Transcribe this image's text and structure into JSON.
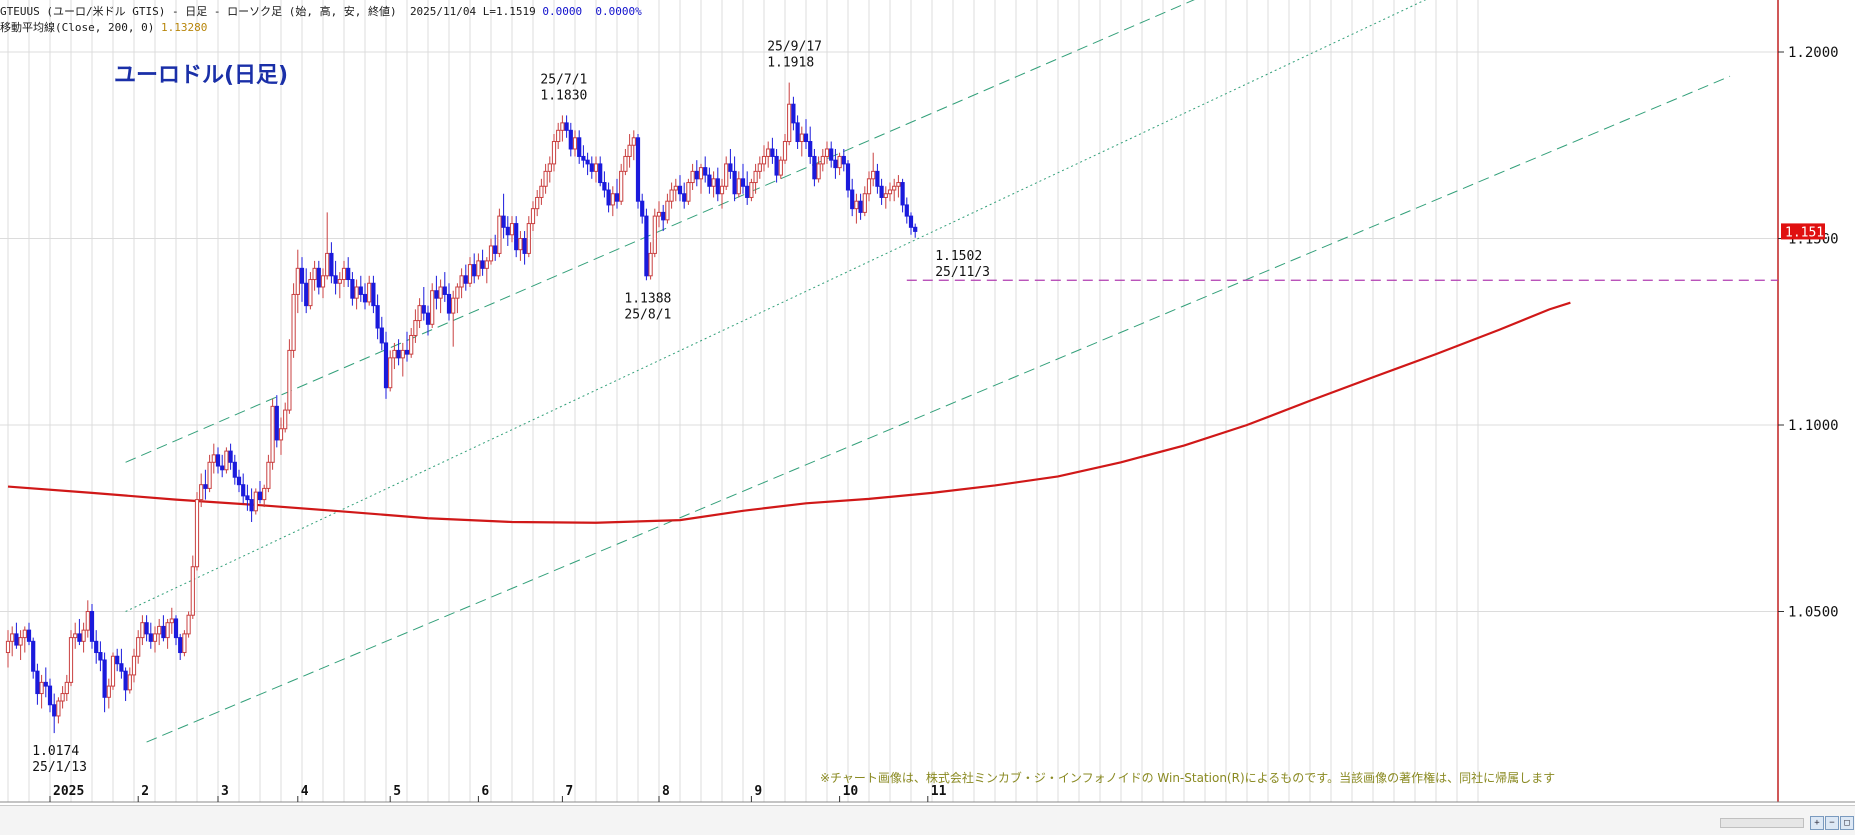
{
  "header": {
    "symbol_line": "GTEUUS (ユーロ/米ドル GTIS) - 日足 - ローソク足 (始, 高, 安, 終値)",
    "date": "2025/11/04",
    "last": "L=1.1519",
    "change": "0.0000",
    "change_pct": "0.0000%",
    "ma_label": "移動平均線(Close, 200, 0)",
    "ma_value": "1.13280"
  },
  "copyright": "※チャート画像は、株式会社ミンカブ・ジ・インフォノイドの Win-Station(R)によるものです。当該画像の著作権は、同社に帰属します",
  "colors": {
    "up": "#c94040",
    "down": "#1a1adc",
    "ma": "#d01818",
    "channel": "#33a07a",
    "support": "#b03cb0",
    "grid": "#dcdcdc",
    "price_tag": "#e01010",
    "title": "#1a2fa8"
  },
  "chart_data": {
    "type": "candlestick",
    "title": "ユーロドル(日足)",
    "y_axis": {
      "side": "right",
      "ylim": [
        1.0,
        1.215
      ],
      "ticks": [
        "1.2000",
        "1.1500",
        "1.1000",
        "1.0500"
      ]
    },
    "x_axis": {
      "ticks": [
        "2025",
        "2",
        "3",
        "4",
        "5",
        "6",
        "7",
        "8",
        "9",
        "10",
        "11"
      ]
    },
    "current_price": "1.1519",
    "annotations": [
      {
        "label": "1.0174",
        "date": "25/1/13",
        "value": 1.0174
      },
      {
        "label": "1.1830",
        "date": "25/7/1",
        "value": 1.183
      },
      {
        "label": "1.1388",
        "date": "25/8/1",
        "value": 1.1388
      },
      {
        "label": "1.1918",
        "date": "25/9/17",
        "value": 1.1918
      },
      {
        "label": "1.1502",
        "date": "25/11/3",
        "value": 1.1502
      }
    ],
    "support_level": 1.1388,
    "moving_average": {
      "name": "移動平均線(Close, 200, 0)",
      "points": [
        [
          0,
          1.0835
        ],
        [
          20,
          1.0818
        ],
        [
          40,
          1.08
        ],
        [
          60,
          1.0785
        ],
        [
          80,
          1.0768
        ],
        [
          100,
          1.075
        ],
        [
          120,
          1.074
        ],
        [
          140,
          1.0738
        ],
        [
          160,
          1.0745
        ],
        [
          175,
          1.077
        ],
        [
          190,
          1.079
        ],
        [
          205,
          1.0802
        ],
        [
          220,
          1.0818
        ],
        [
          235,
          1.0838
        ],
        [
          250,
          1.0862
        ],
        [
          265,
          1.09
        ],
        [
          280,
          1.0945
        ],
        [
          295,
          1.1
        ],
        [
          310,
          1.1065
        ],
        [
          325,
          1.1128
        ],
        [
          340,
          1.119
        ],
        [
          355,
          1.1255
        ],
        [
          367,
          1.131
        ],
        [
          372,
          1.1328
        ]
      ]
    },
    "channel_lines": [
      {
        "style": "dashed",
        "points": [
          [
            28,
            1.09
          ],
          [
            346,
            1.245
          ]
        ]
      },
      {
        "style": "dotted",
        "points": [
          [
            28,
            1.05
          ],
          [
            396,
            1.245
          ]
        ]
      },
      {
        "style": "dashed",
        "points": [
          [
            33,
            1.015
          ],
          [
            410,
            1.1935
          ]
        ]
      }
    ],
    "candles_ohlc_trading_days": [
      [
        1.039,
        1.045,
        1.035,
        1.042
      ],
      [
        1.042,
        1.046,
        1.038,
        1.044
      ],
      [
        1.044,
        1.047,
        1.04,
        1.041
      ],
      [
        1.041,
        1.045,
        1.037,
        1.043
      ],
      [
        1.043,
        1.046,
        1.039,
        1.045
      ],
      [
        1.045,
        1.047,
        1.041,
        1.042
      ],
      [
        1.042,
        1.043,
        1.032,
        1.034
      ],
      [
        1.034,
        1.036,
        1.025,
        1.028
      ],
      [
        1.028,
        1.033,
        1.024,
        1.031
      ],
      [
        1.031,
        1.035,
        1.027,
        1.03
      ],
      [
        1.03,
        1.032,
        1.023,
        1.025
      ],
      [
        1.025,
        1.028,
        1.0174,
        1.022
      ],
      [
        1.022,
        1.027,
        1.02,
        1.026
      ],
      [
        1.026,
        1.03,
        1.024,
        1.028
      ],
      [
        1.028,
        1.033,
        1.026,
        1.031
      ],
      [
        1.031,
        1.045,
        1.03,
        1.043
      ],
      [
        1.043,
        1.047,
        1.04,
        1.044
      ],
      [
        1.044,
        1.048,
        1.041,
        1.042
      ],
      [
        1.042,
        1.047,
        1.039,
        1.045
      ],
      [
        1.045,
        1.053,
        1.043,
        1.05
      ],
      [
        1.05,
        1.052,
        1.04,
        1.042
      ],
      [
        1.042,
        1.045,
        1.036,
        1.039
      ],
      [
        1.039,
        1.042,
        1.034,
        1.037
      ],
      [
        1.037,
        1.039,
        1.023,
        1.027
      ],
      [
        1.027,
        1.032,
        1.024,
        1.03
      ],
      [
        1.03,
        1.039,
        1.029,
        1.038
      ],
      [
        1.038,
        1.04,
        1.034,
        1.036
      ],
      [
        1.036,
        1.04,
        1.032,
        1.034
      ],
      [
        1.034,
        1.035,
        1.026,
        1.029
      ],
      [
        1.029,
        1.035,
        1.028,
        1.033
      ],
      [
        1.033,
        1.04,
        1.031,
        1.038
      ],
      [
        1.038,
        1.045,
        1.036,
        1.043
      ],
      [
        1.043,
        1.049,
        1.041,
        1.047
      ],
      [
        1.047,
        1.049,
        1.042,
        1.044
      ],
      [
        1.044,
        1.047,
        1.04,
        1.042
      ],
      [
        1.042,
        1.046,
        1.039,
        1.044
      ],
      [
        1.044,
        1.048,
        1.041,
        1.046
      ],
      [
        1.046,
        1.049,
        1.042,
        1.043
      ],
      [
        1.043,
        1.048,
        1.04,
        1.047
      ],
      [
        1.047,
        1.051,
        1.044,
        1.048
      ],
      [
        1.048,
        1.049,
        1.041,
        1.043
      ],
      [
        1.043,
        1.044,
        1.037,
        1.039
      ],
      [
        1.039,
        1.045,
        1.038,
        1.044
      ],
      [
        1.044,
        1.05,
        1.043,
        1.049
      ],
      [
        1.049,
        1.065,
        1.048,
        1.062
      ],
      [
        1.062,
        1.082,
        1.061,
        1.08
      ],
      [
        1.08,
        1.087,
        1.078,
        1.084
      ],
      [
        1.084,
        1.088,
        1.08,
        1.083
      ],
      [
        1.083,
        1.092,
        1.082,
        1.09
      ],
      [
        1.09,
        1.095,
        1.087,
        1.092
      ],
      [
        1.092,
        1.094,
        1.087,
        1.089
      ],
      [
        1.089,
        1.092,
        1.086,
        1.088
      ],
      [
        1.088,
        1.094,
        1.087,
        1.093
      ],
      [
        1.093,
        1.095,
        1.088,
        1.09
      ],
      [
        1.09,
        1.092,
        1.084,
        1.086
      ],
      [
        1.086,
        1.088,
        1.082,
        1.084
      ],
      [
        1.084,
        1.087,
        1.079,
        1.081
      ],
      [
        1.081,
        1.084,
        1.077,
        1.08
      ],
      [
        1.08,
        1.083,
        1.074,
        1.077
      ],
      [
        1.077,
        1.083,
        1.076,
        1.082
      ],
      [
        1.082,
        1.085,
        1.079,
        1.08
      ],
      [
        1.08,
        1.084,
        1.078,
        1.083
      ],
      [
        1.083,
        1.092,
        1.082,
        1.09
      ],
      [
        1.09,
        1.107,
        1.088,
        1.105
      ],
      [
        1.105,
        1.108,
        1.094,
        1.096
      ],
      [
        1.096,
        1.102,
        1.092,
        1.099
      ],
      [
        1.099,
        1.106,
        1.098,
        1.104
      ],
      [
        1.104,
        1.123,
        1.103,
        1.12
      ],
      [
        1.12,
        1.138,
        1.118,
        1.135
      ],
      [
        1.135,
        1.147,
        1.13,
        1.142
      ],
      [
        1.142,
        1.145,
        1.133,
        1.138
      ],
      [
        1.138,
        1.142,
        1.13,
        1.132
      ],
      [
        1.132,
        1.141,
        1.131,
        1.139
      ],
      [
        1.139,
        1.144,
        1.136,
        1.142
      ],
      [
        1.142,
        1.144,
        1.135,
        1.137
      ],
      [
        1.137,
        1.142,
        1.134,
        1.14
      ],
      [
        1.14,
        1.157,
        1.139,
        1.146
      ],
      [
        1.146,
        1.149,
        1.138,
        1.14
      ],
      [
        1.14,
        1.144,
        1.135,
        1.138
      ],
      [
        1.138,
        1.141,
        1.134,
        1.139
      ],
      [
        1.139,
        1.144,
        1.137,
        1.142
      ],
      [
        1.142,
        1.145,
        1.137,
        1.139
      ],
      [
        1.139,
        1.141,
        1.132,
        1.134
      ],
      [
        1.134,
        1.139,
        1.131,
        1.137
      ],
      [
        1.137,
        1.14,
        1.133,
        1.135
      ],
      [
        1.135,
        1.138,
        1.131,
        1.133
      ],
      [
        1.133,
        1.14,
        1.132,
        1.138
      ],
      [
        1.138,
        1.14,
        1.13,
        1.132
      ],
      [
        1.132,
        1.135,
        1.123,
        1.126
      ],
      [
        1.126,
        1.129,
        1.12,
        1.122
      ],
      [
        1.122,
        1.125,
        1.107,
        1.11
      ],
      [
        1.11,
        1.12,
        1.109,
        1.118
      ],
      [
        1.118,
        1.122,
        1.115,
        1.12
      ],
      [
        1.12,
        1.123,
        1.116,
        1.118
      ],
      [
        1.118,
        1.122,
        1.113,
        1.12
      ],
      [
        1.12,
        1.125,
        1.117,
        1.119
      ],
      [
        1.119,
        1.126,
        1.118,
        1.124
      ],
      [
        1.124,
        1.131,
        1.122,
        1.128
      ],
      [
        1.128,
        1.134,
        1.126,
        1.132
      ],
      [
        1.132,
        1.137,
        1.128,
        1.13
      ],
      [
        1.13,
        1.132,
        1.124,
        1.127
      ],
      [
        1.127,
        1.138,
        1.126,
        1.136
      ],
      [
        1.136,
        1.14,
        1.131,
        1.134
      ],
      [
        1.134,
        1.139,
        1.13,
        1.137
      ],
      [
        1.137,
        1.141,
        1.133,
        1.135
      ],
      [
        1.135,
        1.138,
        1.128,
        1.13
      ],
      [
        1.13,
        1.136,
        1.121,
        1.134
      ],
      [
        1.134,
        1.138,
        1.13,
        1.137
      ],
      [
        1.137,
        1.142,
        1.134,
        1.14
      ],
      [
        1.14,
        1.143,
        1.136,
        1.138
      ],
      [
        1.138,
        1.145,
        1.137,
        1.143
      ],
      [
        1.143,
        1.146,
        1.138,
        1.14
      ],
      [
        1.14,
        1.146,
        1.139,
        1.144
      ],
      [
        1.144,
        1.147,
        1.14,
        1.142
      ],
      [
        1.142,
        1.145,
        1.138,
        1.144
      ],
      [
        1.144,
        1.15,
        1.143,
        1.148
      ],
      [
        1.148,
        1.151,
        1.144,
        1.146
      ],
      [
        1.146,
        1.158,
        1.145,
        1.156
      ],
      [
        1.156,
        1.162,
        1.15,
        1.153
      ],
      [
        1.153,
        1.156,
        1.148,
        1.151
      ],
      [
        1.151,
        1.156,
        1.149,
        1.154
      ],
      [
        1.154,
        1.156,
        1.145,
        1.147
      ],
      [
        1.147,
        1.152,
        1.144,
        1.15
      ],
      [
        1.15,
        1.152,
        1.143,
        1.146
      ],
      [
        1.146,
        1.156,
        1.145,
        1.154
      ],
      [
        1.154,
        1.16,
        1.152,
        1.158
      ],
      [
        1.158,
        1.163,
        1.156,
        1.161
      ],
      [
        1.161,
        1.166,
        1.159,
        1.164
      ],
      [
        1.164,
        1.17,
        1.162,
        1.168
      ],
      [
        1.168,
        1.172,
        1.165,
        1.17
      ],
      [
        1.17,
        1.178,
        1.168,
        1.176
      ],
      [
        1.176,
        1.181,
        1.174,
        1.179
      ],
      [
        1.179,
        1.183,
        1.176,
        1.181
      ],
      [
        1.181,
        1.183,
        1.177,
        1.179
      ],
      [
        1.179,
        1.181,
        1.172,
        1.174
      ],
      [
        1.174,
        1.179,
        1.172,
        1.177
      ],
      [
        1.177,
        1.179,
        1.17,
        1.172
      ],
      [
        1.172,
        1.175,
        1.169,
        1.171
      ],
      [
        1.171,
        1.173,
        1.167,
        1.17
      ],
      [
        1.17,
        1.172,
        1.166,
        1.168
      ],
      [
        1.168,
        1.172,
        1.165,
        1.17
      ],
      [
        1.17,
        1.172,
        1.164,
        1.165
      ],
      [
        1.165,
        1.168,
        1.161,
        1.163
      ],
      [
        1.163,
        1.165,
        1.157,
        1.159
      ],
      [
        1.159,
        1.164,
        1.156,
        1.162
      ],
      [
        1.162,
        1.166,
        1.158,
        1.16
      ],
      [
        1.16,
        1.17,
        1.159,
        1.168
      ],
      [
        1.168,
        1.174,
        1.167,
        1.172
      ],
      [
        1.172,
        1.178,
        1.169,
        1.175
      ],
      [
        1.175,
        1.179,
        1.171,
        1.177
      ],
      [
        1.177,
        1.178,
        1.158,
        1.16
      ],
      [
        1.16,
        1.162,
        1.154,
        1.156
      ],
      [
        1.156,
        1.158,
        1.1388,
        1.14
      ],
      [
        1.14,
        1.149,
        1.139,
        1.146
      ],
      [
        1.146,
        1.158,
        1.145,
        1.156
      ],
      [
        1.156,
        1.16,
        1.153,
        1.157
      ],
      [
        1.157,
        1.159,
        1.152,
        1.155
      ],
      [
        1.155,
        1.162,
        1.154,
        1.16
      ],
      [
        1.16,
        1.165,
        1.158,
        1.163
      ],
      [
        1.163,
        1.166,
        1.16,
        1.164
      ],
      [
        1.164,
        1.167,
        1.16,
        1.162
      ],
      [
        1.162,
        1.165,
        1.158,
        1.16
      ],
      [
        1.16,
        1.166,
        1.159,
        1.165
      ],
      [
        1.165,
        1.17,
        1.163,
        1.168
      ],
      [
        1.168,
        1.171,
        1.164,
        1.166
      ],
      [
        1.166,
        1.17,
        1.162,
        1.169
      ],
      [
        1.169,
        1.172,
        1.165,
        1.167
      ],
      [
        1.167,
        1.169,
        1.162,
        1.164
      ],
      [
        1.164,
        1.168,
        1.161,
        1.166
      ],
      [
        1.166,
        1.169,
        1.16,
        1.162
      ],
      [
        1.162,
        1.166,
        1.158,
        1.164
      ],
      [
        1.164,
        1.172,
        1.163,
        1.17
      ],
      [
        1.17,
        1.174,
        1.166,
        1.168
      ],
      [
        1.168,
        1.172,
        1.16,
        1.162
      ],
      [
        1.162,
        1.168,
        1.161,
        1.166
      ],
      [
        1.166,
        1.17,
        1.162,
        1.164
      ],
      [
        1.164,
        1.168,
        1.159,
        1.161
      ],
      [
        1.161,
        1.166,
        1.16,
        1.165
      ],
      [
        1.165,
        1.17,
        1.162,
        1.168
      ],
      [
        1.168,
        1.172,
        1.166,
        1.17
      ],
      [
        1.17,
        1.175,
        1.168,
        1.172
      ],
      [
        1.172,
        1.176,
        1.169,
        1.174
      ],
      [
        1.174,
        1.177,
        1.17,
        1.172
      ],
      [
        1.172,
        1.174,
        1.165,
        1.167
      ],
      [
        1.167,
        1.172,
        1.166,
        1.171
      ],
      [
        1.171,
        1.178,
        1.17,
        1.176
      ],
      [
        1.176,
        1.1918,
        1.175,
        1.186
      ],
      [
        1.186,
        1.188,
        1.179,
        1.181
      ],
      [
        1.181,
        1.183,
        1.174,
        1.176
      ],
      [
        1.176,
        1.18,
        1.172,
        1.178
      ],
      [
        1.178,
        1.182,
        1.174,
        1.176
      ],
      [
        1.176,
        1.18,
        1.17,
        1.172
      ],
      [
        1.172,
        1.174,
        1.164,
        1.166
      ],
      [
        1.166,
        1.172,
        1.165,
        1.17
      ],
      [
        1.17,
        1.174,
        1.168,
        1.172
      ],
      [
        1.172,
        1.176,
        1.17,
        1.174
      ],
      [
        1.174,
        1.176,
        1.169,
        1.171
      ],
      [
        1.171,
        1.174,
        1.166,
        1.169
      ],
      [
        1.169,
        1.173,
        1.167,
        1.172
      ],
      [
        1.172,
        1.174,
        1.168,
        1.17
      ],
      [
        1.17,
        1.171,
        1.161,
        1.163
      ],
      [
        1.163,
        1.166,
        1.156,
        1.158
      ],
      [
        1.158,
        1.162,
        1.154,
        1.16
      ],
      [
        1.16,
        1.162,
        1.155,
        1.157
      ],
      [
        1.157,
        1.164,
        1.156,
        1.162
      ],
      [
        1.162,
        1.168,
        1.16,
        1.166
      ],
      [
        1.166,
        1.173,
        1.164,
        1.168
      ],
      [
        1.168,
        1.17,
        1.162,
        1.164
      ],
      [
        1.164,
        1.166,
        1.159,
        1.161
      ],
      [
        1.161,
        1.164,
        1.158,
        1.162
      ],
      [
        1.162,
        1.165,
        1.16,
        1.163
      ],
      [
        1.163,
        1.166,
        1.16,
        1.164
      ],
      [
        1.164,
        1.167,
        1.161,
        1.165
      ],
      [
        1.165,
        1.166,
        1.157,
        1.159
      ],
      [
        1.159,
        1.161,
        1.154,
        1.156
      ],
      [
        1.156,
        1.157,
        1.151,
        1.153
      ],
      [
        1.153,
        1.154,
        1.1502,
        1.1519
      ]
    ]
  }
}
